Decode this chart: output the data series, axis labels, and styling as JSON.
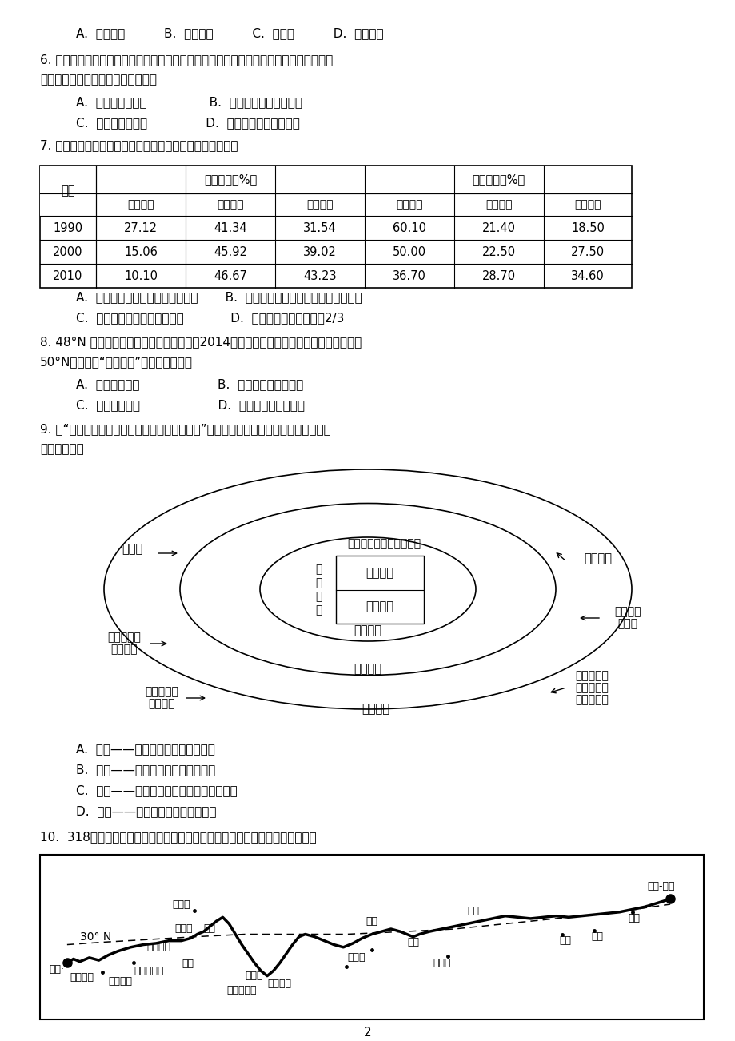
{
  "page_bg": "#ffffff",
  "text_color": "#000000",
  "page_number": "2",
  "q5_line": "A.  地面沉降          B.  水土流失          C.  荒漠化          D.  海水入侵",
  "q6_line1": "6. 强对流天气发生突然、天气剧烈，常伴有雷雨大风、冰雹、龙卷风、局部强降雨等。下",
  "q6_line2": "列关于强对流天气的说法，错误的是",
  "q6_A": "A.  多发于夏季午后                B.  我国一年四季都有发生",
  "q6_C": "C.  易引发城市内涝               D.  华南地区多发生在冬季",
  "q7_line": "7. 下表为我国部分年份产业结构与就业结构情况，表中反映",
  "table_data": [
    [
      "1990",
      "27.12",
      "41.34",
      "31.54",
      "60.10",
      "21.40",
      "18.50"
    ],
    [
      "2000",
      "15.06",
      "45.92",
      "39.02",
      "50.00",
      "22.50",
      "27.50"
    ],
    [
      "2010",
      "10.10",
      "46.67",
      "43.23",
      "36.70",
      "28.70",
      "34.60"
    ]
  ],
  "q7_A": "A.  产业结构与就业结构变动不一致       B.  就业结构由现代型向传统农业型转变",
  "q7_C": "C.  第三产业就业人口增加最多            D.  第一产业总产值下降近2/3",
  "q8_line1": "8. 48°N 一直以来被视为水稼种植的禁区。2014年我国东北黑河把水稼种植区向北推入到",
  "q8_line2": "50°N的区域，“水稼北扩”的成功主要在于",
  "q8_A": "A.  全球气候变暖                    B.  农业技术水平的提高",
  "q8_C": "C.  种植历史悠久                    D.  季风气候，雨热同期",
  "q9_line1": "9. 读“特大城市人口调控政策的多层次分析框架”图，下列关于各层面相关调控政策的说",
  "q9_line2": "法，错误的是",
  "q9_A": "A.  国家——推进中小城市城镇化进程",
  "q9_B": "B.  区域——加快推进区域一体化进程",
  "q9_C": "C.  城市——完善交通、通讯等基础设施建设",
  "q9_D": "D.  城市——大力发展劳动密集型产业",
  "q10_line": "10.  318国道是我国重要的东西向公路干线，下面所列事物，沿线差异较小的是"
}
